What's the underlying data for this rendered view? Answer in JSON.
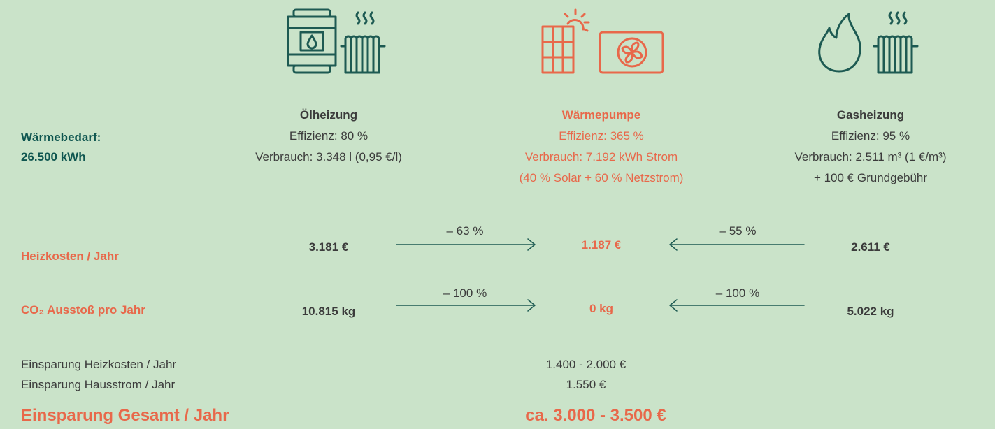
{
  "demand": {
    "label": "Wärmebedarf:",
    "value": "26.500 kWh"
  },
  "systems": [
    {
      "name": "Ölheizung",
      "lines": [
        "Effizienz: 80 %",
        "Verbrauch: 3.348 l (0,95 €/l)"
      ]
    },
    {
      "name": "Wärmepumpe",
      "lines": [
        "Effizienz: 365 %",
        "Verbrauch: 7.192 kWh Strom",
        "(40 % Solar + 60 % Netzstrom)"
      ]
    },
    {
      "name": "Gasheizung",
      "lines": [
        "Effizienz: 95 %",
        "Verbrauch: 2.511 m³ (1 €/m³)",
        "+ 100 € Grundgebühr"
      ]
    }
  ],
  "rows": [
    {
      "label": "Heizkosten / Jahr",
      "values": [
        "3.181 €",
        "1.187 €",
        "2.611 €"
      ],
      "changes": [
        "– 63 %",
        "– 55 %"
      ]
    },
    {
      "label": "CO₂ Ausstoß pro Jahr",
      "values": [
        "10.815 kg",
        "0 kg",
        "5.022 kg"
      ],
      "changes": [
        "– 100 %",
        "– 100 %"
      ]
    }
  ],
  "savings": [
    {
      "label": "Einsparung Heizkosten / Jahr",
      "value": "1.400 - 2.000 €"
    },
    {
      "label": "Einsparung Hausstrom / Jahr",
      "value": "1.550 €"
    }
  ],
  "total": {
    "label": "Einsparung Gesamt / Jahr",
    "value": "ca. 3.000 - 3.500 €"
  }
}
